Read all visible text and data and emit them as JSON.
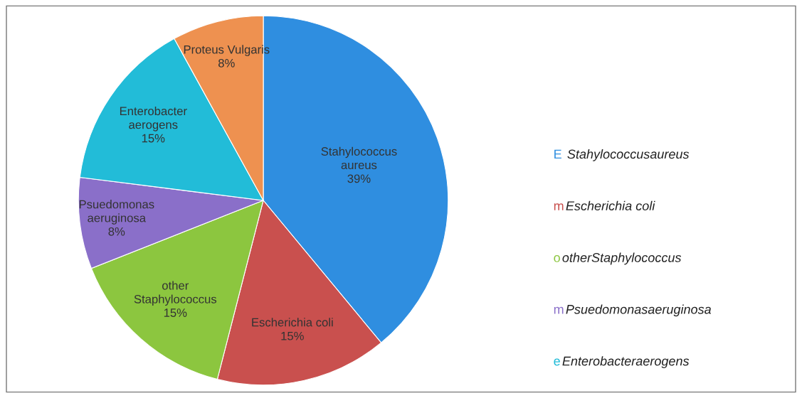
{
  "chart_data": {
    "type": "pie",
    "categories": [
      "Stahylococcus aureus",
      "Escherichia coli",
      "other Staphylococcus",
      "Psuedomonas aeruginosa",
      "Enterobacter aerogens",
      "Proteus Vulgaris"
    ],
    "values": [
      39,
      15,
      15,
      8,
      15,
      8
    ],
    "value_labels": [
      "39%",
      "15%",
      "15%",
      "8%",
      "15%",
      "8%"
    ],
    "colors": [
      "#2f8ee0",
      "#c9504e",
      "#8cc63f",
      "#8a6fc9",
      "#22bcd8",
      "#ee9150"
    ],
    "annotations": [
      "E Stahylococcusaureus",
      "mEscherichia coli",
      "ootherStaphylococcus",
      "mPsuedomonasaeruginosa",
      "eEnterobacteraerogens"
    ]
  }
}
